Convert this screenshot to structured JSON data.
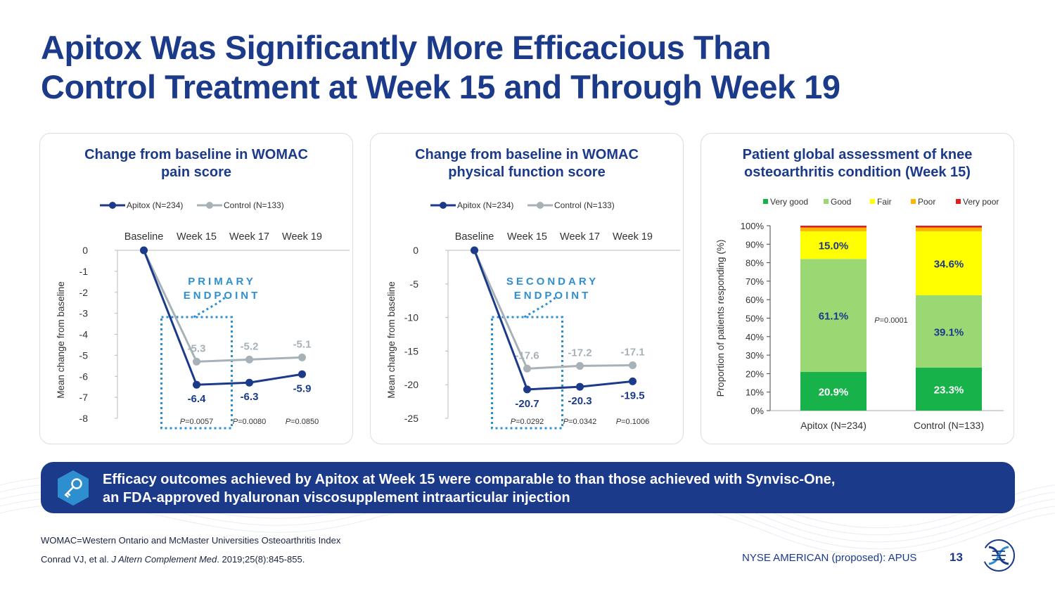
{
  "slide": {
    "title_line1": "Apitox Was Significantly More Efficacious Than",
    "title_line2": "Control Treatment at Week 15 and Through Week 19",
    "page_number": "13",
    "ticker": "NYSE AMERICAN (proposed): APUS",
    "footnote1": "WOMAC=Western Ontario and McMaster Universities Osteoarthritis Index",
    "footnote2_a": "Conrad VJ, et al. ",
    "footnote2_journal": "J Altern Complement Med",
    "footnote2_b": ". 2019;25(8):845-855.",
    "callout_line1": "Efficacy outcomes achieved by Apitox at Week 15 were comparable to than those achieved with Synvisc-One,",
    "callout_line2": "an FDA-approved hyaluronan viscosupplement intraarticular injection"
  },
  "colors": {
    "apitox": "#1b3a8a",
    "control": "#a7b2b8",
    "very_good": "#17b24a",
    "good": "#9ad874",
    "fair": "#ffff00",
    "poor": "#ffb400",
    "very_poor": "#e01e1e",
    "endpoint": "#2e8fd0"
  },
  "icons": {
    "callout": "key-icon",
    "logo": "helix-logo-icon"
  },
  "chart_data": [
    {
      "type": "line",
      "title_line1": "Change from baseline in WOMAC",
      "title_line2": "pain score",
      "categories": [
        "Baseline",
        "Week 15",
        "Week 17",
        "Week 19"
      ],
      "ylabel": "Mean change from baseline",
      "ylim": [
        -8,
        0
      ],
      "yticks": [
        0,
        -1,
        -2,
        -3,
        -4,
        -5,
        -6,
        -7,
        -8
      ],
      "legend_position": "top",
      "endpoint_label_line1": "PRIMARY",
      "endpoint_label_line2": "ENDPOINT",
      "series": [
        {
          "name": "Apitox (N=234)",
          "values": [
            0,
            -6.4,
            -6.3,
            -5.9
          ],
          "labels": [
            "",
            "-6.4",
            "-6.3",
            "-5.9"
          ]
        },
        {
          "name": "Control (N=133)",
          "values": [
            0,
            -5.3,
            -5.2,
            -5.1
          ],
          "labels": [
            "",
            "-5.3",
            "-5.2",
            "-5.1"
          ]
        }
      ],
      "p_values": [
        {
          "prefix": "P",
          "text": "=0.0057"
        },
        {
          "prefix": "P",
          "text": "=0.0080"
        },
        {
          "prefix": "P",
          "text": "=0.0850"
        }
      ]
    },
    {
      "type": "line",
      "title_line1": "Change from baseline in WOMAC",
      "title_line2": "physical function score",
      "categories": [
        "Baseline",
        "Week 15",
        "Week 17",
        "Week 19"
      ],
      "ylabel": "Mean change from baseline",
      "ylim": [
        -25,
        0
      ],
      "yticks": [
        0,
        -5,
        -10,
        -15,
        -20,
        -25
      ],
      "legend_position": "top",
      "endpoint_label_line1": "SECONDARY",
      "endpoint_label_line2": "ENDPOINT",
      "series": [
        {
          "name": "Apitox (N=234)",
          "values": [
            0,
            -20.7,
            -20.3,
            -19.5
          ],
          "labels": [
            "",
            "-20.7",
            "-20.3",
            "-19.5"
          ]
        },
        {
          "name": "Control (N=133)",
          "values": [
            0,
            -17.6,
            -17.2,
            -17.1
          ],
          "labels": [
            "",
            "-17.6",
            "-17.2",
            "-17.1"
          ]
        }
      ],
      "p_values": [
        {
          "prefix": "P",
          "text": "=0.0292"
        },
        {
          "prefix": "P",
          "text": "=0.0342"
        },
        {
          "prefix": "P",
          "text": "=0.1006"
        }
      ]
    },
    {
      "type": "bar",
      "stacked": true,
      "title_line1": "Patient global assessment of knee",
      "title_line2": "osteoarthritis condition (Week 15)",
      "categories": [
        "Apitox (N=234)",
        "Control (N=133)"
      ],
      "ylabel": "Proportion of patients responding (%)",
      "ylim": [
        0,
        100
      ],
      "yticks": [
        "0%",
        "10%",
        "20%",
        "30%",
        "40%",
        "50%",
        "60%",
        "70%",
        "80%",
        "90%",
        "100%"
      ],
      "legend_position": "top",
      "p_value": {
        "prefix": "P",
        "text": "=0.0001"
      },
      "series": [
        {
          "name": "Very good",
          "values": [
            20.9,
            23.3
          ],
          "labels": [
            "20.9%",
            "23.3%"
          ]
        },
        {
          "name": "Good",
          "values": [
            61.1,
            39.1
          ],
          "labels": [
            "61.1%",
            "39.1%"
          ]
        },
        {
          "name": "Fair",
          "values": [
            15.0,
            34.6
          ],
          "labels": [
            "15.0%",
            "34.6%"
          ]
        },
        {
          "name": "Poor",
          "values": [
            2.0,
            2.0
          ],
          "labels": [
            "",
            ""
          ]
        },
        {
          "name": "Very poor",
          "values": [
            1.0,
            1.0
          ],
          "labels": [
            "",
            ""
          ]
        }
      ]
    }
  ]
}
